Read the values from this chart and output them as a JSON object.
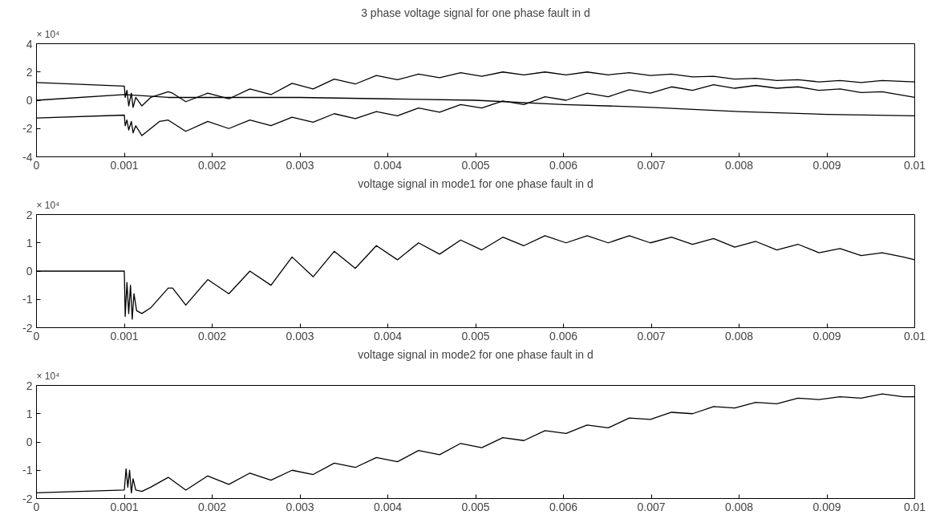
{
  "chart_data": [
    {
      "type": "line",
      "title": "3 phase voltage signal for one phase fault in d",
      "annotations": [
        "× 10⁴"
      ],
      "xlim": [
        0,
        0.01
      ],
      "ylim": [
        -4,
        4
      ],
      "xticks": [
        0,
        0.001,
        0.002,
        0.003,
        0.004,
        0.005,
        0.006,
        0.007,
        0.008,
        0.009,
        0.01
      ],
      "yticks": [
        -4,
        -2,
        0,
        2,
        4
      ],
      "grid": false,
      "line_style": "solid",
      "marker": "none",
      "series": [
        {
          "color": "#000000",
          "x": [
            0,
            0.001,
            0.00101,
            0.00103,
            0.00105,
            0.00108,
            0.0011,
            0.00113,
            0.0012,
            0.0013,
            0.0014,
            0.0015,
            0.00155,
            0.0017,
            0.00195,
            0.00219,
            0.00243,
            0.00267,
            0.00291,
            0.00315,
            0.00339,
            0.00363,
            0.00387,
            0.00411,
            0.00435,
            0.00459,
            0.00483,
            0.00507,
            0.00531,
            0.00555,
            0.00579,
            0.00603,
            0.00627,
            0.00651,
            0.00675,
            0.00699,
            0.00723,
            0.00747,
            0.00771,
            0.00795,
            0.00819,
            0.00843,
            0.00867,
            0.00891,
            0.00915,
            0.00939,
            0.00963,
            0.01
          ],
          "values": [
            1.25,
            1.0,
            0.2,
            0.7,
            -0.4,
            0.5,
            -0.5,
            0.2,
            -0.4,
            0.2,
            0.4,
            0.6,
            0.5,
            -0.1,
            0.5,
            0.1,
            0.8,
            0.4,
            1.2,
            0.8,
            1.5,
            1.15,
            1.75,
            1.45,
            1.85,
            1.6,
            1.95,
            1.7,
            2.0,
            1.8,
            2.0,
            1.8,
            2.0,
            1.8,
            1.95,
            1.75,
            1.85,
            1.65,
            1.7,
            1.5,
            1.55,
            1.4,
            1.45,
            1.3,
            1.4,
            1.25,
            1.4,
            1.3
          ]
        },
        {
          "color": "#000000",
          "x": [
            0,
            0.001,
            0.00101,
            0.00103,
            0.00105,
            0.00108,
            0.0011,
            0.00113,
            0.0012,
            0.0013,
            0.0014,
            0.0015,
            0.0017,
            0.00195,
            0.00219,
            0.00243,
            0.00267,
            0.00291,
            0.00315,
            0.00339,
            0.00363,
            0.00387,
            0.00411,
            0.00435,
            0.00459,
            0.00483,
            0.00507,
            0.00531,
            0.00555,
            0.00579,
            0.00603,
            0.00627,
            0.00651,
            0.00675,
            0.00699,
            0.00723,
            0.00747,
            0.00771,
            0.00795,
            0.00819,
            0.00843,
            0.00867,
            0.00891,
            0.00915,
            0.00939,
            0.00963,
            0.01
          ],
          "values": [
            -1.25,
            -1.05,
            -1.8,
            -1.4,
            -2.1,
            -1.5,
            -2.3,
            -1.8,
            -2.5,
            -2.0,
            -1.5,
            -1.4,
            -2.2,
            -1.5,
            -2.0,
            -1.4,
            -1.8,
            -1.2,
            -1.55,
            -0.95,
            -1.3,
            -0.8,
            -1.1,
            -0.55,
            -0.85,
            -0.3,
            -0.55,
            -0.05,
            -0.3,
            0.25,
            0.0,
            0.5,
            0.25,
            0.75,
            0.5,
            0.95,
            0.7,
            1.1,
            0.85,
            1.05,
            0.85,
            0.95,
            0.7,
            0.8,
            0.55,
            0.6,
            0.2
          ]
        },
        {
          "color": "#000000",
          "x": [
            0,
            0.001,
            0.0015,
            0.002,
            0.003,
            0.004,
            0.005,
            0.006,
            0.007,
            0.008,
            0.009,
            0.01
          ],
          "values": [
            0,
            0.4,
            0.2,
            0.2,
            0.2,
            0.1,
            0,
            -0.3,
            -0.5,
            -0.8,
            -1.0,
            -1.1
          ]
        }
      ]
    },
    {
      "type": "line",
      "title": "voltage signal in mode1 for one phase fault in d",
      "annotations": [
        "× 10⁴"
      ],
      "xlim": [
        0,
        0.01
      ],
      "ylim": [
        -2,
        2
      ],
      "xticks": [
        0,
        0.001,
        0.002,
        0.003,
        0.004,
        0.005,
        0.006,
        0.007,
        0.008,
        0.009,
        0.01
      ],
      "yticks": [
        -2,
        -1,
        0,
        1,
        2
      ],
      "grid": false,
      "line_style": "solid",
      "marker": "none",
      "series": [
        {
          "color": "#000000",
          "x": [
            0,
            0.001,
            0.00101,
            0.00103,
            0.00105,
            0.00107,
            0.00109,
            0.00111,
            0.00114,
            0.0012,
            0.0013,
            0.0015,
            0.00155,
            0.0017,
            0.00195,
            0.00219,
            0.00243,
            0.00267,
            0.00291,
            0.00315,
            0.00339,
            0.00363,
            0.00387,
            0.00411,
            0.00435,
            0.00459,
            0.00483,
            0.00507,
            0.00531,
            0.00555,
            0.00579,
            0.00603,
            0.00627,
            0.00651,
            0.00675,
            0.00699,
            0.00723,
            0.00747,
            0.00771,
            0.00795,
            0.00819,
            0.00843,
            0.00867,
            0.00891,
            0.00915,
            0.00939,
            0.00963,
            0.00987,
            0.01
          ],
          "values": [
            0,
            0,
            -1.6,
            -0.4,
            -1.5,
            -0.5,
            -1.7,
            -0.8,
            -1.4,
            -1.5,
            -1.3,
            -0.6,
            -0.6,
            -1.2,
            -0.3,
            -0.8,
            0.0,
            -0.5,
            0.5,
            -0.2,
            0.7,
            0.1,
            0.9,
            0.4,
            1.0,
            0.6,
            1.1,
            0.75,
            1.2,
            0.9,
            1.25,
            1.0,
            1.25,
            1.0,
            1.25,
            1.0,
            1.2,
            0.95,
            1.15,
            0.85,
            1.05,
            0.75,
            0.95,
            0.65,
            0.8,
            0.55,
            0.65,
            0.5,
            0.4
          ]
        }
      ]
    },
    {
      "type": "line",
      "title": "voltage signal in mode2 for one phase fault in d",
      "annotations": [
        "× 10⁴"
      ],
      "xlim": [
        0,
        0.01
      ],
      "ylim": [
        -2,
        2
      ],
      "xticks": [
        0,
        0.001,
        0.002,
        0.003,
        0.004,
        0.005,
        0.006,
        0.007,
        0.008,
        0.009,
        0.01
      ],
      "yticks": [
        -2,
        -1,
        0,
        1,
        2
      ],
      "grid": false,
      "line_style": "solid",
      "marker": "none",
      "series": [
        {
          "color": "#000000",
          "x": [
            0,
            0.001,
            0.00102,
            0.00104,
            0.00106,
            0.00108,
            0.0011,
            0.00113,
            0.0012,
            0.0013,
            0.0015,
            0.0017,
            0.00195,
            0.00219,
            0.00243,
            0.00267,
            0.00291,
            0.00315,
            0.00339,
            0.00363,
            0.00387,
            0.00411,
            0.00435,
            0.00459,
            0.00483,
            0.00507,
            0.00531,
            0.00555,
            0.00579,
            0.00603,
            0.00627,
            0.00651,
            0.00675,
            0.00699,
            0.00723,
            0.00747,
            0.00771,
            0.00795,
            0.00819,
            0.00843,
            0.00867,
            0.00891,
            0.00915,
            0.00939,
            0.00963,
            0.00987,
            0.01
          ],
          "values": [
            -1.8,
            -1.7,
            -0.95,
            -1.6,
            -1.0,
            -1.8,
            -1.3,
            -1.7,
            -1.75,
            -1.6,
            -1.25,
            -1.7,
            -1.2,
            -1.5,
            -1.1,
            -1.35,
            -1.0,
            -1.15,
            -0.75,
            -0.9,
            -0.55,
            -0.7,
            -0.3,
            -0.45,
            -0.05,
            -0.2,
            0.15,
            0.05,
            0.4,
            0.3,
            0.6,
            0.5,
            0.85,
            0.8,
            1.05,
            1.0,
            1.25,
            1.2,
            1.4,
            1.35,
            1.55,
            1.5,
            1.6,
            1.55,
            1.7,
            1.6,
            1.6
          ]
        }
      ]
    }
  ]
}
